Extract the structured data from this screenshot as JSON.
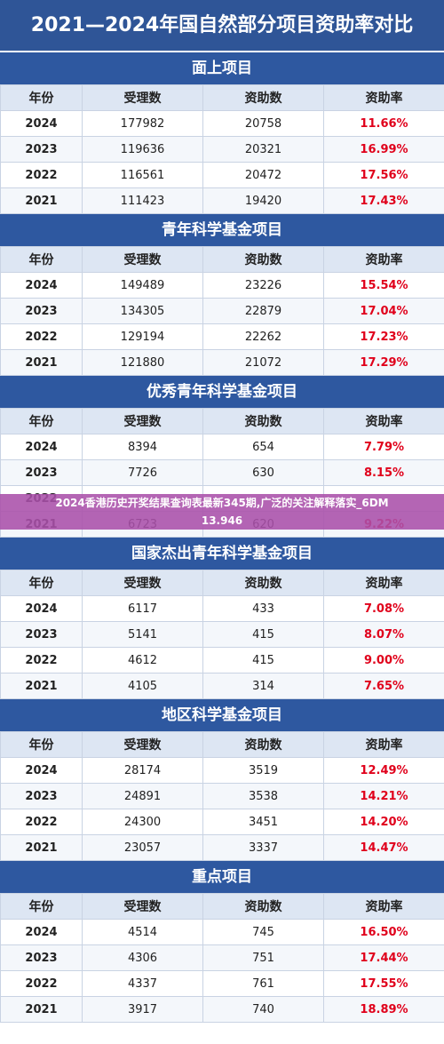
{
  "title": "2021—2024年国自然部分项目资助率对比",
  "headers": [
    "年份",
    "受理数",
    "资助数",
    "资助率"
  ],
  "sections": [
    {
      "name": "面上项目",
      "rows": [
        {
          "year": "2024",
          "accepted": "177982",
          "funded": "20758",
          "rate": "11.66%"
        },
        {
          "year": "2023",
          "accepted": "119636",
          "funded": "20321",
          "rate": "16.99%"
        },
        {
          "year": "2022",
          "accepted": "116561",
          "funded": "20472",
          "rate": "17.56%"
        },
        {
          "year": "2021",
          "accepted": "111423",
          "funded": "19420",
          "rate": "17.43%"
        }
      ]
    },
    {
      "name": "青年科学基金项目",
      "rows": [
        {
          "year": "2024",
          "accepted": "149489",
          "funded": "23226",
          "rate": "15.54%"
        },
        {
          "year": "2023",
          "accepted": "134305",
          "funded": "22879",
          "rate": "17.04%"
        },
        {
          "year": "2022",
          "accepted": "129194",
          "funded": "22262",
          "rate": "17.23%"
        },
        {
          "year": "2021",
          "accepted": "121880",
          "funded": "21072",
          "rate": "17.29%"
        }
      ]
    },
    {
      "name": "优秀青年科学基金项目",
      "rows": [
        {
          "year": "2024",
          "accepted": "8394",
          "funded": "654",
          "rate": "7.79%"
        },
        {
          "year": "2023",
          "accepted": "7726",
          "funded": "630",
          "rate": "8.15%"
        },
        {
          "year": "2022",
          "accepted": "",
          "funded": "",
          "rate": ""
        },
        {
          "year": "2021",
          "accepted": "6723",
          "funded": "620",
          "rate": "9.22%"
        }
      ]
    },
    {
      "name": "国家杰出青年科学基金项目",
      "rows": [
        {
          "year": "2024",
          "accepted": "6117",
          "funded": "433",
          "rate": "7.08%"
        },
        {
          "year": "2023",
          "accepted": "5141",
          "funded": "415",
          "rate": "8.07%"
        },
        {
          "year": "2022",
          "accepted": "4612",
          "funded": "415",
          "rate": "9.00%"
        },
        {
          "year": "2021",
          "accepted": "4105",
          "funded": "314",
          "rate": "7.65%"
        }
      ]
    },
    {
      "name": "地区科学基金项目",
      "rows": [
        {
          "year": "2024",
          "accepted": "28174",
          "funded": "3519",
          "rate": "12.49%"
        },
        {
          "year": "2023",
          "accepted": "24891",
          "funded": "3538",
          "rate": "14.21%"
        },
        {
          "year": "2022",
          "accepted": "24300",
          "funded": "3451",
          "rate": "14.20%"
        },
        {
          "year": "2021",
          "accepted": "23057",
          "funded": "3337",
          "rate": "14.47%"
        }
      ]
    },
    {
      "name": "重点项目",
      "rows": [
        {
          "year": "2024",
          "accepted": "4514",
          "funded": "745",
          "rate": "16.50%"
        },
        {
          "year": "2023",
          "accepted": "4306",
          "funded": "751",
          "rate": "17.44%"
        },
        {
          "year": "2022",
          "accepted": "4337",
          "funded": "761",
          "rate": "17.55%"
        },
        {
          "year": "2021",
          "accepted": "3917",
          "funded": "740",
          "rate": "18.89%"
        }
      ]
    }
  ],
  "banner": {
    "line1": "2024香港历史开奖结果查询表最新345期,广泛的关注解释落实_6DM",
    "line2": "13.946"
  }
}
